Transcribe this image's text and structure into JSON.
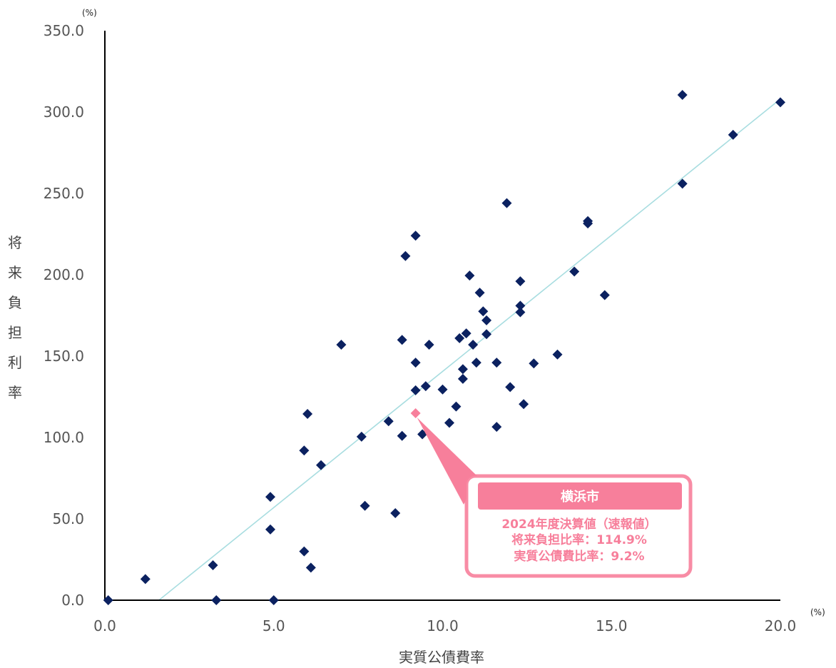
{
  "colors": {
    "point": "#0b2160",
    "highlight": "#f77f9b",
    "trend": "#a8dde0",
    "axis": "#000000",
    "callout_fill": "#f77f9b",
    "callout_text": "#f77f9b"
  },
  "chart_data": {
    "type": "scatter",
    "xlabel": "実質公債費率",
    "ylabel": "将来負担利率",
    "x_unit": "(%)",
    "y_unit": "(%)",
    "xlim": [
      0,
      20
    ],
    "ylim": [
      0,
      350
    ],
    "x_ticks": [
      "0.0",
      "5.0",
      "10.0",
      "15.0",
      "20.0"
    ],
    "y_ticks": [
      "0.0",
      "50.0",
      "100.0",
      "150.0",
      "200.0",
      "250.0",
      "300.0",
      "350.0"
    ],
    "grid": false,
    "points": [
      [
        0.1,
        0.0
      ],
      [
        1.2,
        13.0
      ],
      [
        3.2,
        21.5
      ],
      [
        3.3,
        0.0
      ],
      [
        4.9,
        43.5
      ],
      [
        4.9,
        63.5
      ],
      [
        5.0,
        0.0
      ],
      [
        5.9,
        30.0
      ],
      [
        5.9,
        92.0
      ],
      [
        6.0,
        114.5
      ],
      [
        6.1,
        20.0
      ],
      [
        6.4,
        83.0
      ],
      [
        7.0,
        157.0
      ],
      [
        7.6,
        100.5
      ],
      [
        7.7,
        58.0
      ],
      [
        8.4,
        110.0
      ],
      [
        8.6,
        53.5
      ],
      [
        8.8,
        101.0
      ],
      [
        8.8,
        160.0
      ],
      [
        8.9,
        211.5
      ],
      [
        9.2,
        224.0
      ],
      [
        9.2,
        146.0
      ],
      [
        9.2,
        129.0
      ],
      [
        9.4,
        102.0
      ],
      [
        9.5,
        131.5
      ],
      [
        9.6,
        157.0
      ],
      [
        10.0,
        129.5
      ],
      [
        10.2,
        109.0
      ],
      [
        10.4,
        119.0
      ],
      [
        10.5,
        161.0
      ],
      [
        10.6,
        142.0
      ],
      [
        10.6,
        136.0
      ],
      [
        10.7,
        164.0
      ],
      [
        10.8,
        199.5
      ],
      [
        10.9,
        157.0
      ],
      [
        11.0,
        146.0
      ],
      [
        11.1,
        189.0
      ],
      [
        11.2,
        177.5
      ],
      [
        11.3,
        172.0
      ],
      [
        11.3,
        163.5
      ],
      [
        11.6,
        146.0
      ],
      [
        11.6,
        106.5
      ],
      [
        11.9,
        244.0
      ],
      [
        12.0,
        131.0
      ],
      [
        12.3,
        196.0
      ],
      [
        12.3,
        181.0
      ],
      [
        12.3,
        177.0
      ],
      [
        12.4,
        120.5
      ],
      [
        12.7,
        145.5
      ],
      [
        13.4,
        151.0
      ],
      [
        13.9,
        202.0
      ],
      [
        14.3,
        233.0
      ],
      [
        14.3,
        231.5
      ],
      [
        14.8,
        187.5
      ],
      [
        17.1,
        310.5
      ],
      [
        17.1,
        256.0
      ],
      [
        18.6,
        286.0
      ],
      [
        20.0,
        306.0
      ]
    ],
    "trendline": {
      "x": [
        1.6,
        20.0
      ],
      "y": [
        0.0,
        308.0
      ]
    },
    "highlight": {
      "x": 9.2,
      "y": 114.9
    },
    "annotation": {
      "title": "横浜市",
      "lines": [
        "2024年度決算値（速報値）",
        "将来負担比率：114.9%",
        "実質公債費比率：9.2%"
      ]
    }
  }
}
